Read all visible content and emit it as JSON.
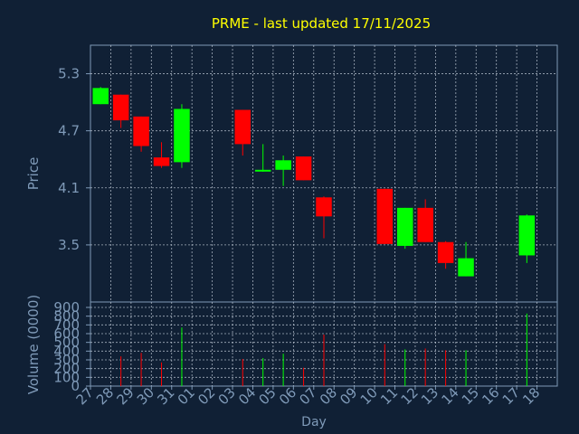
{
  "colors": {
    "background": "#102035",
    "axis": "#7f9ab8",
    "grid": "#c8d2de",
    "text": "#7f9ab8",
    "title": "#ffff00",
    "up": "#00ff00",
    "down": "#ff0000"
  },
  "chart_data": [
    {
      "type": "candlestick",
      "title": "PRME - last updated 17/11/2025",
      "ylabel": "Price",
      "ylim": [
        2.9,
        5.6
      ],
      "yticks": [
        3.5,
        4.1,
        4.7,
        5.3
      ],
      "ytick_labels": [
        "3.5",
        "4.1",
        "4.7",
        "5.3"
      ],
      "grid": true,
      "x": [
        "27",
        "28",
        "29",
        "30",
        "31",
        "01",
        "02",
        "03",
        "04",
        "05",
        "06",
        "07",
        "08",
        "09",
        "10",
        "11",
        "12",
        "13",
        "14",
        "15",
        "16",
        "17",
        "18"
      ],
      "candles": [
        {
          "x": "27",
          "open": 4.98,
          "high": 5.16,
          "low": 4.98,
          "close": 5.15
        },
        {
          "x": "28",
          "open": 5.08,
          "high": 5.08,
          "low": 4.73,
          "close": 4.81
        },
        {
          "x": "29",
          "open": 4.85,
          "high": 4.85,
          "low": 4.48,
          "close": 4.54
        },
        {
          "x": "30",
          "open": 4.42,
          "high": 4.58,
          "low": 4.31,
          "close": 4.33
        },
        {
          "x": "31",
          "open": 4.37,
          "high": 4.98,
          "low": 4.31,
          "close": 4.93
        },
        {
          "x": "03",
          "open": 4.92,
          "high": 4.92,
          "low": 4.44,
          "close": 4.56
        },
        {
          "x": "04",
          "open": 4.28,
          "high": 4.56,
          "low": 4.27,
          "close": 4.29
        },
        {
          "x": "05",
          "open": 4.29,
          "high": 4.44,
          "low": 4.12,
          "close": 4.39
        },
        {
          "x": "06",
          "open": 4.43,
          "high": 4.43,
          "low": 4.18,
          "close": 4.18
        },
        {
          "x": "07",
          "open": 4.0,
          "high": 4.01,
          "low": 3.57,
          "close": 3.8
        },
        {
          "x": "10",
          "open": 4.09,
          "high": 4.09,
          "low": 3.51,
          "close": 3.51
        },
        {
          "x": "11",
          "open": 3.49,
          "high": 3.89,
          "low": 3.46,
          "close": 3.89
        },
        {
          "x": "12",
          "open": 3.89,
          "high": 3.98,
          "low": 3.53,
          "close": 3.53
        },
        {
          "x": "13",
          "open": 3.53,
          "high": 3.54,
          "low": 3.25,
          "close": 3.31
        },
        {
          "x": "14",
          "open": 3.17,
          "high": 3.53,
          "low": 3.17,
          "close": 3.36
        },
        {
          "x": "17",
          "open": 3.39,
          "high": 3.82,
          "low": 3.31,
          "close": 3.81
        }
      ]
    },
    {
      "type": "bar",
      "ylabel": "Volume (0000)",
      "xlabel": "Day",
      "ylim": [
        0,
        900
      ],
      "yticks": [
        0,
        100,
        200,
        300,
        400,
        500,
        600,
        700,
        800,
        900
      ],
      "ytick_labels": [
        "0",
        "100",
        "200",
        "300",
        "400",
        "500",
        "600",
        "700",
        "800",
        "900"
      ],
      "grid": true,
      "x": [
        "27",
        "28",
        "29",
        "30",
        "31",
        "01",
        "02",
        "03",
        "04",
        "05",
        "06",
        "07",
        "08",
        "09",
        "10",
        "11",
        "12",
        "13",
        "14",
        "15",
        "16",
        "17",
        "18"
      ],
      "tick_labels": [
        "27",
        "28",
        "29",
        "30",
        "31",
        "01",
        "02",
        "03",
        "04",
        "05",
        "06",
        "07",
        "08",
        "09",
        "10",
        "11",
        "12",
        "13",
        "14",
        "15",
        "16",
        "17",
        "18"
      ],
      "bars": [
        {
          "x": "28",
          "value": 340,
          "direction": "down"
        },
        {
          "x": "29",
          "value": 380,
          "direction": "down"
        },
        {
          "x": "30",
          "value": 270,
          "direction": "down"
        },
        {
          "x": "31",
          "value": 670,
          "direction": "up"
        },
        {
          "x": "03",
          "value": 310,
          "direction": "down"
        },
        {
          "x": "04",
          "value": 320,
          "direction": "up"
        },
        {
          "x": "05",
          "value": 370,
          "direction": "up"
        },
        {
          "x": "06",
          "value": 210,
          "direction": "down"
        },
        {
          "x": "07",
          "value": 590,
          "direction": "down"
        },
        {
          "x": "10",
          "value": 480,
          "direction": "down"
        },
        {
          "x": "11",
          "value": 420,
          "direction": "up"
        },
        {
          "x": "12",
          "value": 430,
          "direction": "down"
        },
        {
          "x": "13",
          "value": 410,
          "direction": "down"
        },
        {
          "x": "14",
          "value": 410,
          "direction": "up"
        },
        {
          "x": "17",
          "value": 830,
          "direction": "up"
        }
      ]
    }
  ]
}
